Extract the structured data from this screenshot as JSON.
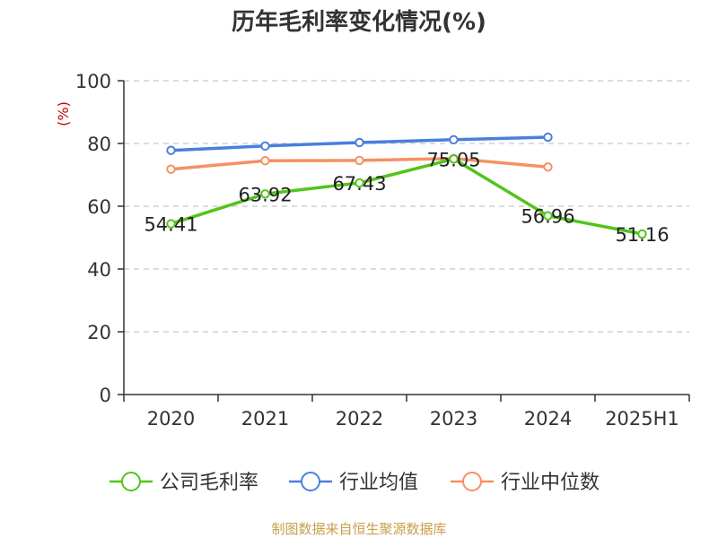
{
  "chart_data": {
    "type": "line",
    "title": "历年毛利率变化情况(%)",
    "ylabel": "(%)",
    "categories": [
      "2020",
      "2021",
      "2022",
      "2023",
      "2024",
      "2025H1"
    ],
    "ylim": [
      0,
      100
    ],
    "yticks": [
      0,
      20,
      40,
      60,
      80,
      100
    ],
    "grid": true,
    "legend_position": "bottom",
    "series": [
      {
        "name": "公司毛利率",
        "color": "#52c41a",
        "values": [
          54.41,
          63.92,
          67.43,
          75.05,
          56.96,
          51.16
        ],
        "labels": [
          "54.41",
          "63.92",
          "67.43",
          "75.05",
          "56.96",
          "51.16"
        ]
      },
      {
        "name": "行业均值",
        "color": "#4a7fdb",
        "values": [
          77.8,
          79.2,
          80.3,
          81.2,
          82.0,
          null
        ]
      },
      {
        "name": "行业中位数",
        "color": "#f59162",
        "values": [
          71.8,
          74.5,
          74.6,
          75.2,
          72.5,
          null
        ]
      }
    ]
  },
  "source_text": "制图数据来自恒生聚源数据库",
  "colors": {
    "axis": "#333333",
    "grid": "#c8c8c8",
    "ylabel": "#cc0000",
    "source": "#c7a04a"
  }
}
